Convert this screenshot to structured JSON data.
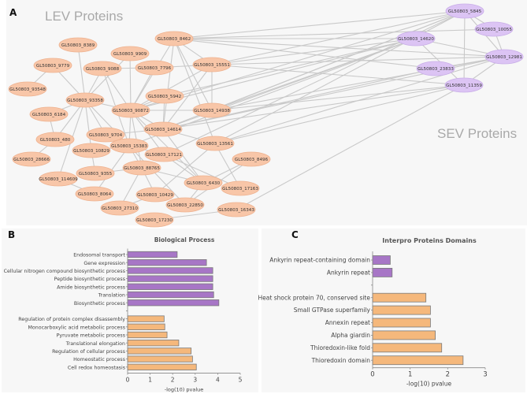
{
  "panel_a": {
    "letter": "A",
    "lev_title": "LEV Proteins",
    "sev_title": "SEV Proteins",
    "colors": {
      "lev_fill": "#f8c6a8",
      "lev_stroke": "#eeb290",
      "sev_fill": "#dcc4f4",
      "sev_stroke": "#c9aee8",
      "edge": "#c9c9c9"
    },
    "lev_nodes": [
      "GL50803_8462",
      "GL50803_8389",
      "GL50803_9909",
      "GL50803_9779",
      "GL50803_9088",
      "GL50803_7796",
      "GL50803_15551",
      "GL50803_93548",
      "GL50803_93358",
      "GL50803_5942",
      "GL50803_90872",
      "GL50803_14938",
      "GL50803_6184",
      "GL50803_14614",
      "GL50803_9704",
      "GL50803_480",
      "GL50803_13561",
      "GL50803_15383",
      "GL50803_10829",
      "GL50803_17121",
      "GL50803_28666",
      "GL50803_8496",
      "GL50803_88765",
      "GL50803_9355",
      "GL50803_114609",
      "GL50803_6430",
      "GL50803_17163",
      "GL50803_8064",
      "GL50803_10429",
      "GL50803_22850",
      "GL50803_27310",
      "GL50803_16343",
      "GL50803_17230"
    ],
    "sev_nodes": [
      "GL50803_5845",
      "GL50803_10055",
      "GL50803_14620",
      "GL50803_12981",
      "GL50803_23833",
      "GL50803_11359"
    ],
    "edges": [
      [
        "8462",
        "90872"
      ],
      [
        "8462",
        "15551"
      ],
      [
        "8462",
        "14938"
      ],
      [
        "8462",
        "14614"
      ],
      [
        "8462",
        "13561"
      ],
      [
        "8389",
        "93358"
      ],
      [
        "9909",
        "90872"
      ],
      [
        "9909",
        "93358"
      ],
      [
        "9779",
        "93548"
      ],
      [
        "9779",
        "93358"
      ],
      [
        "9088",
        "90872"
      ],
      [
        "9088",
        "93358"
      ],
      [
        "9088",
        "7796"
      ],
      [
        "9088",
        "15383"
      ],
      [
        "7796",
        "15551"
      ],
      [
        "7796",
        "90872"
      ],
      [
        "15551",
        "14938"
      ],
      [
        "15551",
        "90872"
      ],
      [
        "15551",
        "14614"
      ],
      [
        "5942",
        "90872"
      ],
      [
        "5942",
        "14614"
      ],
      [
        "93358",
        "6184"
      ],
      [
        "93358",
        "90872"
      ],
      [
        "93358",
        "9704"
      ],
      [
        "93358",
        "480"
      ],
      [
        "93358",
        "15383"
      ],
      [
        "93358",
        "114609"
      ],
      [
        "93358",
        "10829"
      ],
      [
        "90872",
        "14938"
      ],
      [
        "90872",
        "14614"
      ],
      [
        "90872",
        "15383"
      ],
      [
        "90872",
        "17121"
      ],
      [
        "90872",
        "88765"
      ],
      [
        "90872",
        "6430"
      ],
      [
        "6184",
        "480"
      ],
      [
        "480",
        "28666"
      ],
      [
        "14614",
        "13561"
      ],
      [
        "14614",
        "9704"
      ],
      [
        "14614",
        "6430"
      ],
      [
        "9704",
        "15383"
      ],
      [
        "10829",
        "15383"
      ],
      [
        "10829",
        "9355"
      ],
      [
        "15383",
        "17121"
      ],
      [
        "15383",
        "88765"
      ],
      [
        "15383",
        "8064"
      ],
      [
        "15383",
        "22850"
      ],
      [
        "17121",
        "6430"
      ],
      [
        "17121",
        "17163"
      ],
      [
        "88765",
        "9355"
      ],
      [
        "88765",
        "27310"
      ],
      [
        "88765",
        "10429"
      ],
      [
        "88765",
        "6430"
      ],
      [
        "114609",
        "8064"
      ],
      [
        "6430",
        "8496"
      ],
      [
        "6430",
        "22850"
      ],
      [
        "8496",
        "22850"
      ],
      [
        "13561",
        "17163"
      ],
      [
        "13561",
        "10429"
      ],
      [
        "27310",
        "10429"
      ],
      [
        "17230",
        "16343"
      ],
      [
        "8462",
        "5845"
      ],
      [
        "8462",
        "14620"
      ],
      [
        "8462",
        "10055"
      ],
      [
        "8462",
        "12981"
      ],
      [
        "8462",
        "23833"
      ],
      [
        "15551",
        "5845"
      ],
      [
        "15551",
        "14620"
      ],
      [
        "15551",
        "12981"
      ],
      [
        "15551",
        "11359"
      ],
      [
        "14938",
        "5845"
      ],
      [
        "14938",
        "14620"
      ],
      [
        "14938",
        "12981"
      ],
      [
        "14938",
        "11359"
      ],
      [
        "14614",
        "5845"
      ],
      [
        "14614",
        "14620"
      ],
      [
        "14614",
        "12981"
      ],
      [
        "14614",
        "23833"
      ],
      [
        "14614",
        "11359"
      ],
      [
        "13561",
        "5845"
      ],
      [
        "13561",
        "12981"
      ],
      [
        "13561",
        "11359"
      ],
      [
        "90872",
        "5845"
      ],
      [
        "90872",
        "14620"
      ],
      [
        "5942",
        "14620"
      ],
      [
        "17121",
        "5845"
      ],
      [
        "16343",
        "11359"
      ],
      [
        "15383",
        "14620"
      ],
      [
        "5845",
        "10055"
      ],
      [
        "5845",
        "11359"
      ],
      [
        "10055",
        "12981"
      ],
      [
        "14620",
        "11359"
      ],
      [
        "14620",
        "12981"
      ],
      [
        "12981",
        "11359"
      ],
      [
        "23833",
        "12981"
      ],
      [
        "5845",
        "12981"
      ]
    ]
  },
  "chart_data": [
    {
      "type": "bar",
      "orientation": "horizontal",
      "panel_letter": "B",
      "title": "Biological Process",
      "xlabel": "-log(10) pvalue",
      "xlim": [
        0,
        5
      ],
      "xticks": [
        "0",
        "1",
        "2",
        "3",
        "4",
        "5"
      ],
      "groups": [
        {
          "name": "SEV",
          "color": "#a776c6",
          "categories": [
            "Endosomal transport",
            "Gene expression",
            "Cellular nitrogen compound biosynthetic process",
            "Peptide biosynthetic process",
            "Amide biosynthetic process",
            "Translation",
            "Biosynthetic process"
          ],
          "values": [
            2.2,
            3.5,
            3.78,
            3.78,
            3.78,
            3.82,
            4.05
          ]
        },
        {
          "name": "LEV",
          "color": "#f5b87c",
          "categories": [
            "Regulation of protein complex disassembly",
            "Monocarboxylic acid metabolic process",
            "Pyruvate metabolic process",
            "Translational elongation",
            "Regulation of cellular process",
            "Homeostatic process",
            "Cell redox homeostasis"
          ],
          "values": [
            1.62,
            1.65,
            1.75,
            2.27,
            2.82,
            2.88,
            3.05
          ]
        }
      ]
    },
    {
      "type": "bar",
      "orientation": "horizontal",
      "panel_letter": "C",
      "title": "Interpro Proteins Domains",
      "xlabel": "-log(10) pvalue",
      "xlim": [
        0,
        3
      ],
      "xticks": [
        "0",
        "1",
        "2",
        "3"
      ],
      "groups": [
        {
          "name": "SEV",
          "color": "#a776c6",
          "categories": [
            "Ankyrin repeat-containing domain",
            "Ankyrin repeat"
          ],
          "values": [
            0.47,
            0.52
          ]
        },
        {
          "name": "LEV",
          "color": "#f5b87c",
          "categories": [
            "Heat shock protein 70, conserved site",
            "Small GTPase superfamily",
            "Annexin repeat",
            "Alpha giardin",
            "Thioredoxin-like fold",
            "Thioredoxin domain"
          ],
          "values": [
            1.42,
            1.54,
            1.54,
            1.67,
            1.84,
            2.41
          ]
        }
      ]
    }
  ]
}
